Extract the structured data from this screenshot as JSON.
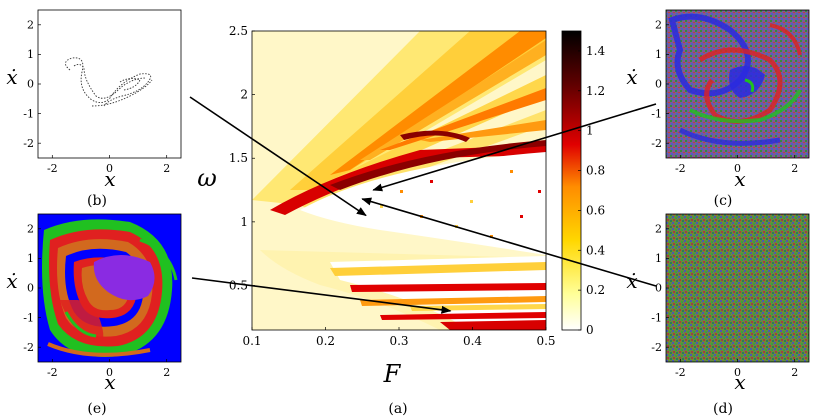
{
  "figure": {
    "panels": {
      "a": {
        "caption": "(a)"
      },
      "b": {
        "caption": "(b)"
      },
      "c": {
        "caption": "(c)"
      },
      "d": {
        "caption": "(d)"
      },
      "e": {
        "caption": "(e)"
      }
    },
    "axis_symbols": {
      "x": "x",
      "xdot": "ẋ"
    }
  },
  "chart_data": [
    {
      "type": "heatmap",
      "panel": "a",
      "xlabel": "F",
      "ylabel": "ω",
      "xlim": [
        0.1,
        0.5
      ],
      "ylim": [
        0.15,
        2.5
      ],
      "xticks": [
        "0.1",
        "0.2",
        "0.3",
        "0.4",
        "0.5"
      ],
      "yticks": [
        "0.5",
        "1",
        "1.5",
        "2",
        "2.5"
      ],
      "colorbar": {
        "range": [
          0,
          1.5
        ],
        "ticks": [
          "0",
          "0.2",
          "0.4",
          "0.6",
          "0.8",
          "1",
          "1.2",
          "1.4"
        ],
        "colors": [
          "#ffffff",
          "#ffff99",
          "#ffd700",
          "#ff8c00",
          "#e00000",
          "#600000",
          "#000000"
        ]
      },
      "arrows": [
        {
          "from_panel": "b",
          "to": [
            0.255,
            1.05
          ]
        },
        {
          "from_panel": "c",
          "to": [
            0.265,
            1.25
          ]
        },
        {
          "from_panel": "d",
          "to": [
            0.25,
            1.18
          ]
        },
        {
          "from_panel": "e",
          "to": [
            0.37,
            0.3
          ]
        }
      ]
    },
    {
      "type": "scatter",
      "panel": "b",
      "xlabel": "x",
      "ylabel": "ẋ",
      "xlim": [
        -2.5,
        2.5
      ],
      "ylim": [
        -2.5,
        2.5
      ],
      "xticks": [
        "-2",
        "0",
        "2"
      ],
      "yticks": [
        "-2",
        "-1",
        "0",
        "1",
        "2"
      ]
    },
    {
      "type": "scatter",
      "panel": "c",
      "xlabel": "x",
      "ylabel": "ẋ",
      "xlim": [
        -2.5,
        2.5
      ],
      "ylim": [
        -2.5,
        2.5
      ],
      "xticks": [
        "-2",
        "0",
        "2"
      ],
      "yticks": [
        "-2",
        "-1",
        "0",
        "1",
        "2"
      ],
      "colors": [
        "#2a2adf",
        "#e02020",
        "#20c020",
        "#8a2be2"
      ]
    },
    {
      "type": "scatter",
      "panel": "d",
      "xlabel": "x",
      "ylabel": "ẋ",
      "xlim": [
        -2.5,
        2.5
      ],
      "ylim": [
        -2.5,
        2.5
      ],
      "xticks": [
        "-2",
        "0",
        "2"
      ],
      "yticks": [
        "-2",
        "-1",
        "0",
        "1",
        "2"
      ],
      "colors": [
        "#3c8c3c",
        "#8a7a2a",
        "#5a4ab0",
        "#c04040"
      ]
    },
    {
      "type": "heatmap",
      "panel": "e",
      "xlabel": "x",
      "ylabel": "ẋ",
      "xlim": [
        -2.5,
        2.5
      ],
      "ylim": [
        -2.5,
        2.5
      ],
      "xticks": [
        "-2",
        "0",
        "2"
      ],
      "yticks": [
        "-2",
        "-1",
        "0",
        "1",
        "2"
      ],
      "colors": [
        "#0000ff",
        "#e02020",
        "#20c020",
        "#8a2be2",
        "#d2691e"
      ]
    }
  ]
}
